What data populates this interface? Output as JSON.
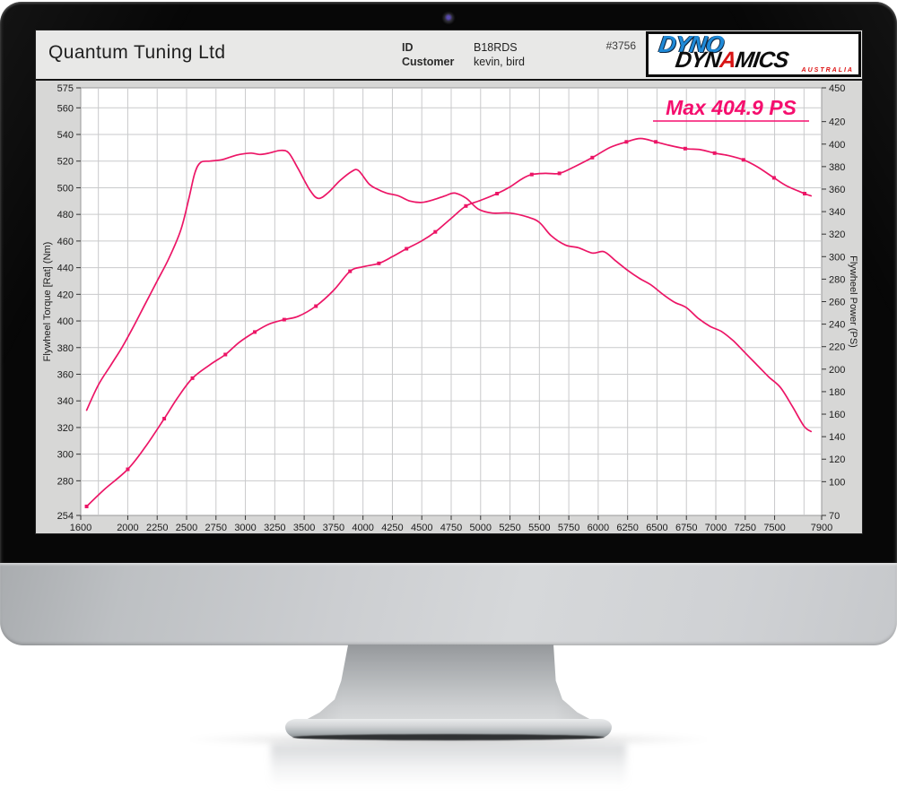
{
  "header": {
    "company": "Quantum Tuning Ltd",
    "id_label": "ID",
    "id_value": "B18RDS",
    "customer_label": "Customer",
    "customer_value": "kevin, bird",
    "run_number": "#3756"
  },
  "logo": {
    "dyno": "DYNO",
    "dyn": "DYN",
    "a": "A",
    "mics": "MICS",
    "country": "AUSTRALIA"
  },
  "chart_data": {
    "type": "line",
    "annotation": "Max 404.9 PS",
    "line_color": "#ec1566",
    "annotation_color": "#f50f6e",
    "grid": true,
    "x_axis": {
      "min": 1600,
      "max": 7900,
      "grid_step": 250,
      "ticks": [
        1600,
        2000,
        2250,
        2500,
        2750,
        3000,
        3250,
        3500,
        3750,
        4000,
        4250,
        4500,
        4750,
        5000,
        5250,
        5500,
        5750,
        6000,
        6250,
        6500,
        6750,
        7000,
        7250,
        7500,
        7900
      ]
    },
    "y_left": {
      "label": "Flywheel Torque [Rat] (Nm)",
      "min": 254,
      "max": 575,
      "ticks": [
        254,
        280,
        300,
        320,
        340,
        360,
        380,
        400,
        420,
        440,
        460,
        480,
        500,
        520,
        540,
        560,
        575
      ]
    },
    "y_right": {
      "label": "Flywheel Power (PS)",
      "min": 70,
      "max": 450,
      "ticks": [
        70,
        100,
        120,
        140,
        160,
        180,
        200,
        220,
        240,
        260,
        280,
        300,
        320,
        340,
        360,
        380,
        400,
        420,
        450
      ]
    },
    "series": [
      {
        "name": "Flywheel Torque (Nm)",
        "axis": "left",
        "points": [
          [
            1650,
            333
          ],
          [
            1750,
            352
          ],
          [
            1850,
            366
          ],
          [
            1950,
            380
          ],
          [
            2050,
            396
          ],
          [
            2150,
            413
          ],
          [
            2250,
            430
          ],
          [
            2350,
            447
          ],
          [
            2450,
            468
          ],
          [
            2520,
            492
          ],
          [
            2570,
            511
          ],
          [
            2620,
            519
          ],
          [
            2700,
            520
          ],
          [
            2800,
            521
          ],
          [
            2870,
            523
          ],
          [
            2950,
            525
          ],
          [
            3050,
            526
          ],
          [
            3120,
            525
          ],
          [
            3200,
            526
          ],
          [
            3300,
            528
          ],
          [
            3370,
            526
          ],
          [
            3450,
            514
          ],
          [
            3550,
            498
          ],
          [
            3620,
            492
          ],
          [
            3700,
            496
          ],
          [
            3800,
            505
          ],
          [
            3900,
            512
          ],
          [
            3960,
            513
          ],
          [
            4050,
            503
          ],
          [
            4120,
            499
          ],
          [
            4200,
            496
          ],
          [
            4300,
            494
          ],
          [
            4400,
            490
          ],
          [
            4500,
            489
          ],
          [
            4600,
            491
          ],
          [
            4700,
            494
          ],
          [
            4780,
            496
          ],
          [
            4880,
            492
          ],
          [
            4980,
            484
          ],
          [
            5100,
            481
          ],
          [
            5250,
            481
          ],
          [
            5400,
            478
          ],
          [
            5500,
            474
          ],
          [
            5600,
            464
          ],
          [
            5720,
            457
          ],
          [
            5830,
            455
          ],
          [
            5950,
            451
          ],
          [
            6050,
            452
          ],
          [
            6150,
            445
          ],
          [
            6250,
            438
          ],
          [
            6350,
            432
          ],
          [
            6450,
            427
          ],
          [
            6550,
            420
          ],
          [
            6650,
            414
          ],
          [
            6750,
            410
          ],
          [
            6850,
            402
          ],
          [
            6950,
            396
          ],
          [
            7050,
            392
          ],
          [
            7150,
            385
          ],
          [
            7250,
            376
          ],
          [
            7350,
            367
          ],
          [
            7450,
            358
          ],
          [
            7550,
            350
          ],
          [
            7650,
            336
          ],
          [
            7750,
            321
          ],
          [
            7810,
            317
          ]
        ],
        "markers": []
      },
      {
        "name": "Flywheel Power (PS)",
        "axis": "right",
        "points": [
          [
            1650,
            78
          ],
          [
            1800,
            93
          ],
          [
            2000,
            111
          ],
          [
            2150,
            131
          ],
          [
            2310,
            156
          ],
          [
            2420,
            174
          ],
          [
            2550,
            192
          ],
          [
            2700,
            204
          ],
          [
            2830,
            213
          ],
          [
            2950,
            224
          ],
          [
            3080,
            233
          ],
          [
            3200,
            240
          ],
          [
            3330,
            244
          ],
          [
            3450,
            247
          ],
          [
            3600,
            256
          ],
          [
            3750,
            270
          ],
          [
            3890,
            287
          ],
          [
            4000,
            291
          ],
          [
            4135,
            294
          ],
          [
            4250,
            300
          ],
          [
            4370,
            307
          ],
          [
            4500,
            314
          ],
          [
            4615,
            322
          ],
          [
            4750,
            334
          ],
          [
            4875,
            345
          ],
          [
            5000,
            350
          ],
          [
            5140,
            356
          ],
          [
            5250,
            362
          ],
          [
            5350,
            369
          ],
          [
            5435,
            373
          ],
          [
            5550,
            374
          ],
          [
            5670,
            374
          ],
          [
            5800,
            380
          ],
          [
            5950,
            388
          ],
          [
            6100,
            397
          ],
          [
            6240,
            402
          ],
          [
            6360,
            405
          ],
          [
            6490,
            402
          ],
          [
            6600,
            399
          ],
          [
            6740,
            396
          ],
          [
            6870,
            395
          ],
          [
            6990,
            392
          ],
          [
            7100,
            390
          ],
          [
            7235,
            386
          ],
          [
            7350,
            380
          ],
          [
            7495,
            370
          ],
          [
            7600,
            363
          ],
          [
            7755,
            356
          ],
          [
            7810,
            354
          ]
        ],
        "markers": [
          [
            1650,
            78
          ],
          [
            2000,
            111
          ],
          [
            2310,
            156
          ],
          [
            2550,
            192
          ],
          [
            2830,
            213
          ],
          [
            3080,
            233
          ],
          [
            3330,
            244
          ],
          [
            3600,
            256
          ],
          [
            3890,
            287
          ],
          [
            4135,
            294
          ],
          [
            4370,
            307
          ],
          [
            4615,
            322
          ],
          [
            4875,
            345
          ],
          [
            5140,
            356
          ],
          [
            5435,
            373
          ],
          [
            5670,
            374
          ],
          [
            5950,
            388
          ],
          [
            6240,
            402
          ],
          [
            6490,
            402
          ],
          [
            6740,
            396
          ],
          [
            6990,
            392
          ],
          [
            7235,
            386
          ],
          [
            7495,
            370
          ],
          [
            7755,
            356
          ]
        ]
      }
    ]
  }
}
